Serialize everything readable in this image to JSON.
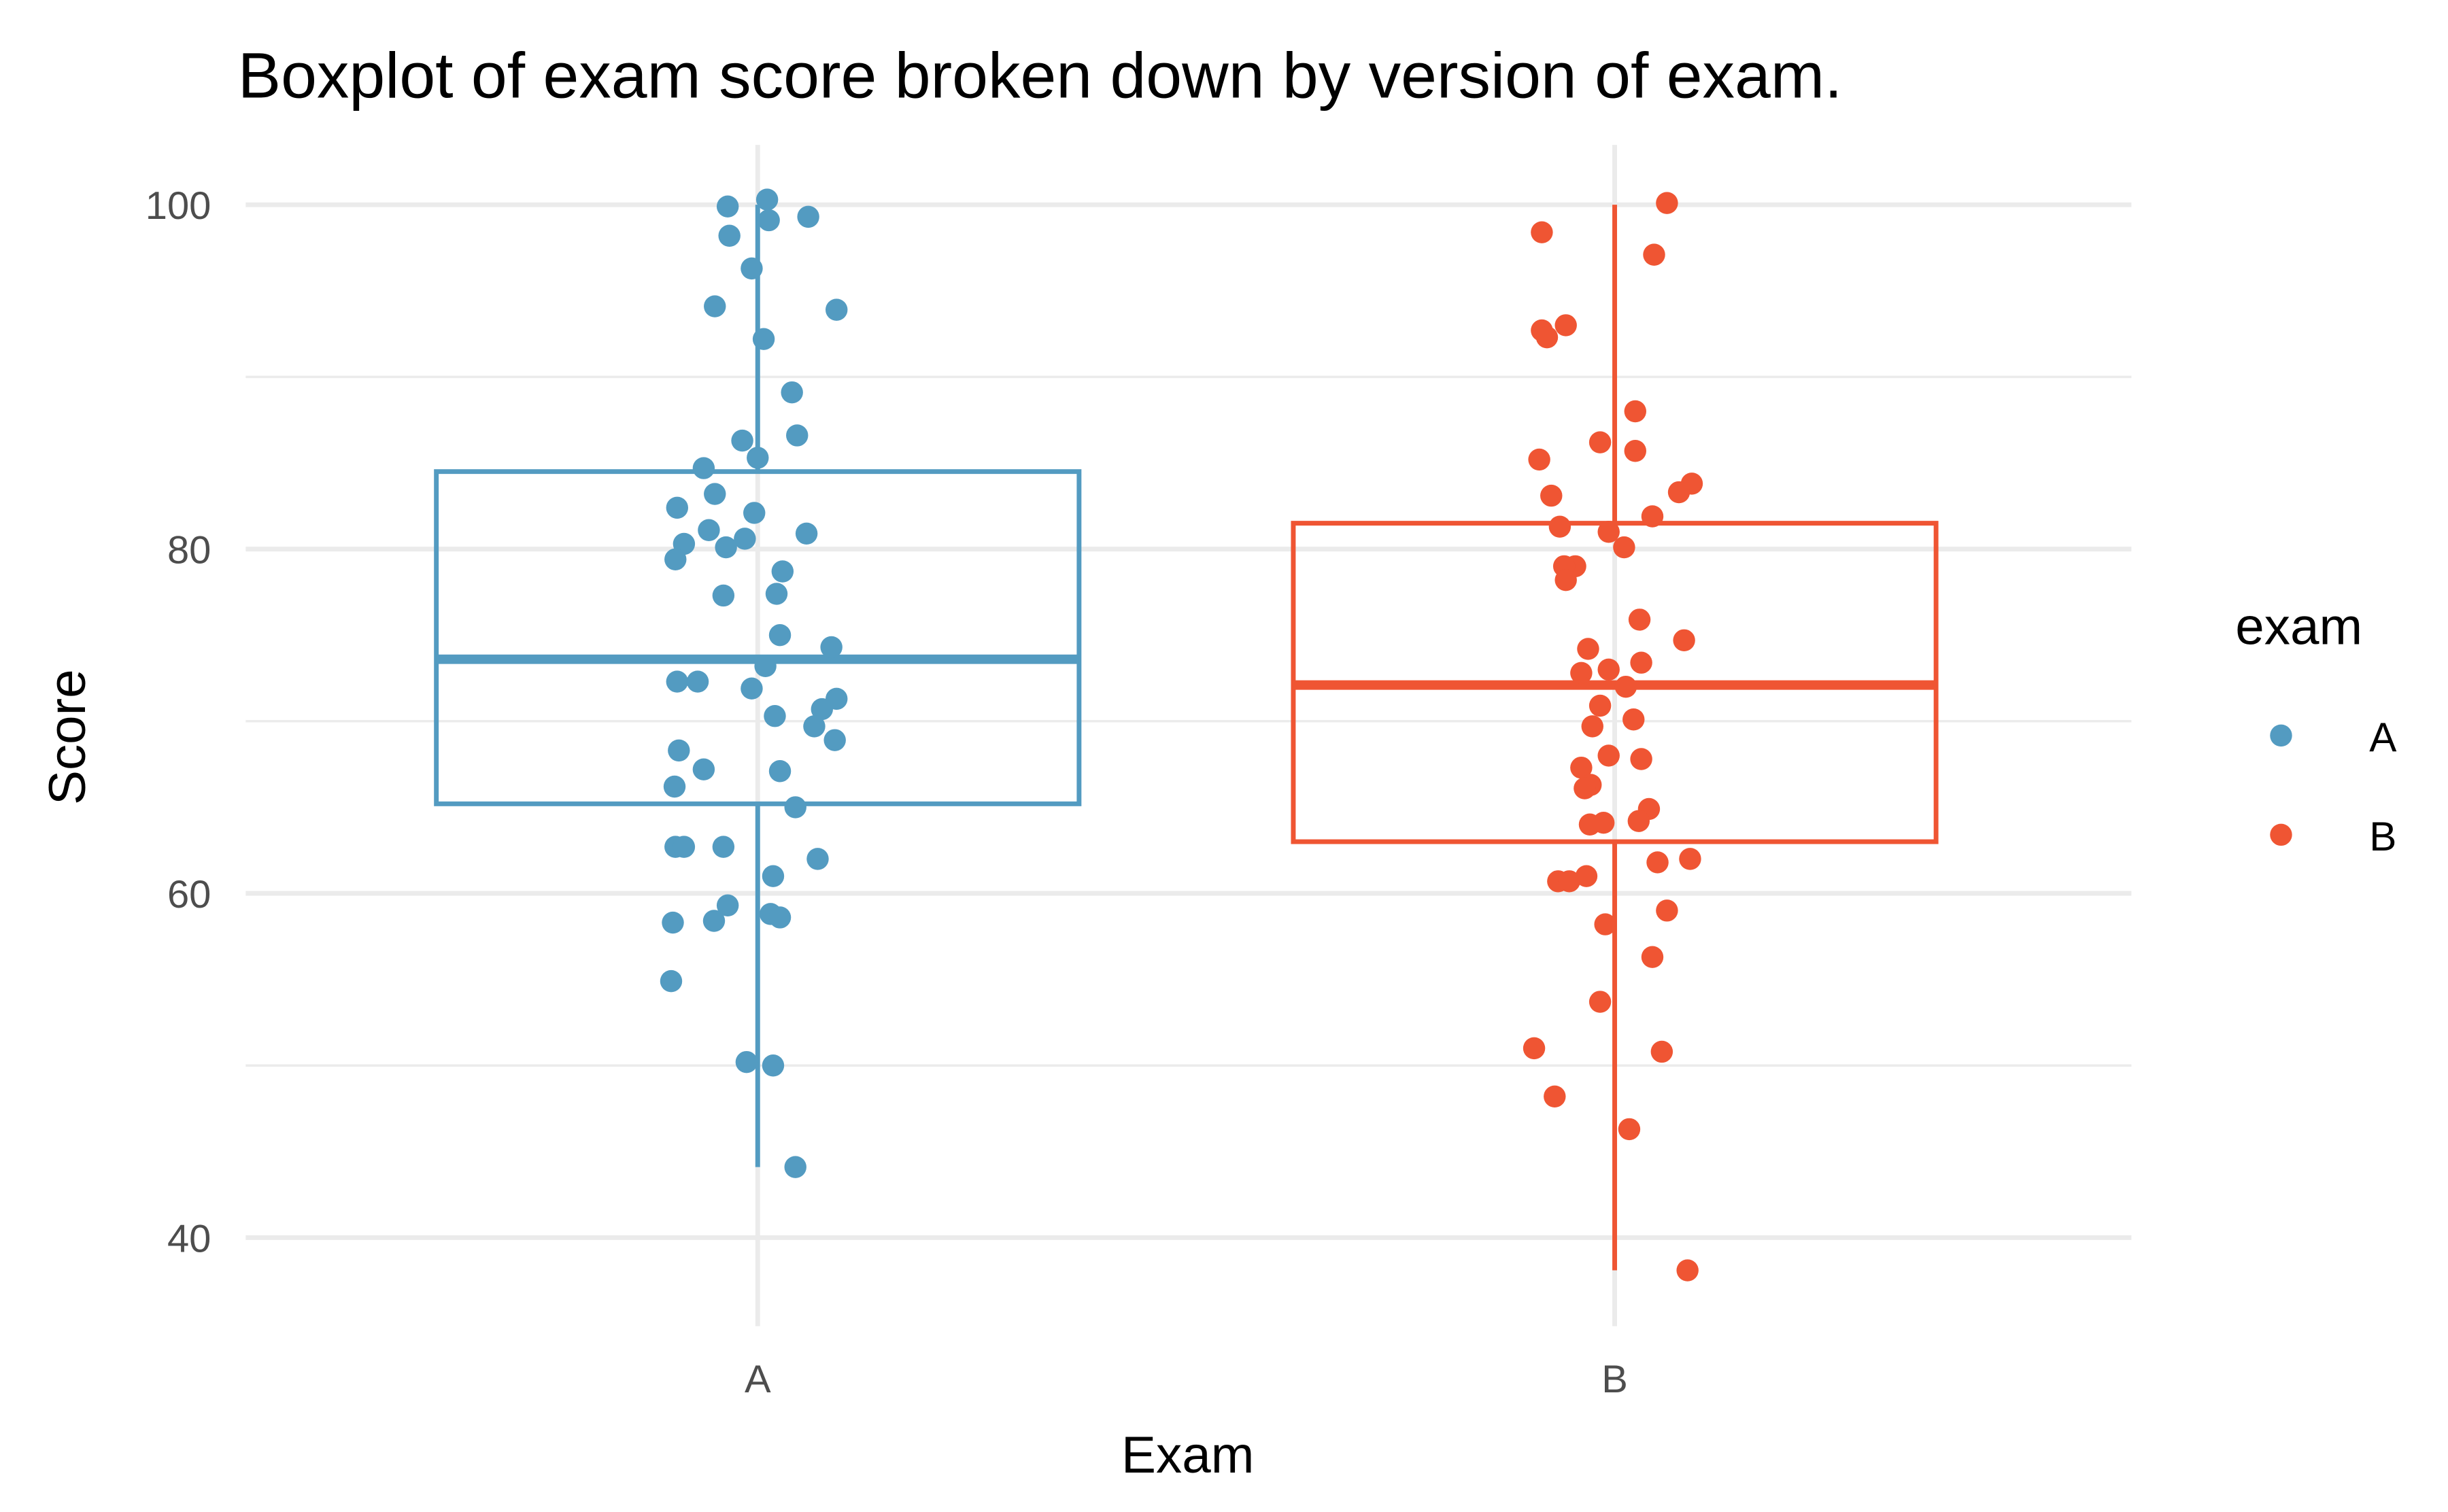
{
  "chart_data": {
    "type": "boxplot",
    "title": "Boxplot of exam score broken down by version of exam.",
    "xlabel": "Exam",
    "ylabel": "Score",
    "categories": [
      "A",
      "B"
    ],
    "ylim": [
      34.5,
      102
    ],
    "yticks": [
      40,
      60,
      80,
      100
    ],
    "yticks_minor": [
      50,
      70,
      90
    ],
    "grid": true,
    "legend": {
      "title": "exam",
      "position": "right",
      "entries": [
        "A",
        "B"
      ]
    },
    "colors": {
      "A": "#539bc1",
      "B": "#ef5533"
    },
    "boxes": [
      {
        "name": "A",
        "min": 44.1,
        "q1": 65.2,
        "median": 73.6,
        "q3": 84.5,
        "max": 100.0
      },
      {
        "name": "B",
        "min": 38.1,
        "q1": 63.0,
        "median": 72.1,
        "q3": 81.5,
        "max": 100.0
      }
    ],
    "series": [
      {
        "name": "A",
        "x": [
          0.965,
          1.011,
          1.013,
          1.059,
          0.967,
          0.993,
          0.95,
          1.092,
          1.007,
          1.04,
          0.982,
          1.046,
          1.0,
          0.937,
          0.95,
          0.906,
          0.996,
          1.057,
          0.943,
          0.985,
          0.914,
          0.963,
          0.904,
          1.029,
          0.96,
          1.022,
          1.026,
          1.086,
          1.009,
          0.906,
          0.93,
          0.993,
          1.092,
          1.075,
          1.02,
          1.066,
          1.09,
          0.908,
          0.937,
          1.026,
          0.903,
          1.044,
          0.904,
          0.914,
          0.96,
          1.07,
          1.018,
          0.965,
          1.015,
          1.026,
          0.901,
          0.949,
          0.899,
          0.987,
          1.018,
          1.044
        ],
        "y": [
          99.9,
          100.3,
          99.1,
          99.3,
          98.2,
          96.3,
          94.1,
          93.9,
          92.2,
          89.1,
          86.3,
          86.6,
          85.3,
          84.7,
          83.2,
          82.4,
          82.1,
          80.9,
          81.1,
          80.6,
          80.3,
          80.1,
          79.4,
          78.7,
          77.3,
          77.4,
          75.0,
          74.3,
          73.2,
          72.3,
          72.3,
          71.9,
          71.3,
          70.7,
          70.3,
          69.7,
          68.9,
          68.3,
          67.2,
          67.1,
          66.2,
          65.0,
          62.7,
          62.7,
          62.7,
          62.0,
          61.0,
          59.3,
          58.8,
          58.6,
          58.3,
          58.4,
          54.9,
          50.2,
          50.0,
          44.1
        ]
      },
      {
        "name": "B",
        "x": [
          1.915,
          2.061,
          2.046,
          1.943,
          1.915,
          1.921,
          2.024,
          1.983,
          2.024,
          1.912,
          2.09,
          2.075,
          1.926,
          2.044,
          1.936,
          1.993,
          2.011,
          1.954,
          1.941,
          1.943,
          2.029,
          2.081,
          1.969,
          2.031,
          1.961,
          1.993,
          2.013,
          1.983,
          2.022,
          1.974,
          1.993,
          2.031,
          1.961,
          1.972,
          1.965,
          2.04,
          2.028,
          1.971,
          1.987,
          2.088,
          2.05,
          1.967,
          1.934,
          1.947,
          2.061,
          1.989,
          2.044,
          1.983,
          1.906,
          2.055,
          1.93,
          2.017,
          2.085
        ],
        "y": [
          98.4,
          100.1,
          97.1,
          93.0,
          92.7,
          92.3,
          88.0,
          86.2,
          85.7,
          85.2,
          83.8,
          83.3,
          83.1,
          81.9,
          81.3,
          81.0,
          80.1,
          79.0,
          79.0,
          78.2,
          75.9,
          74.7,
          74.2,
          73.4,
          72.8,
          73.0,
          72.0,
          70.9,
          70.1,
          69.7,
          68.0,
          67.8,
          67.3,
          66.3,
          66.1,
          64.9,
          64.2,
          64.0,
          64.1,
          62.0,
          61.8,
          61.0,
          60.7,
          60.7,
          59.0,
          58.2,
          56.3,
          53.7,
          51.0,
          50.8,
          48.2,
          46.3,
          38.1
        ]
      }
    ]
  }
}
